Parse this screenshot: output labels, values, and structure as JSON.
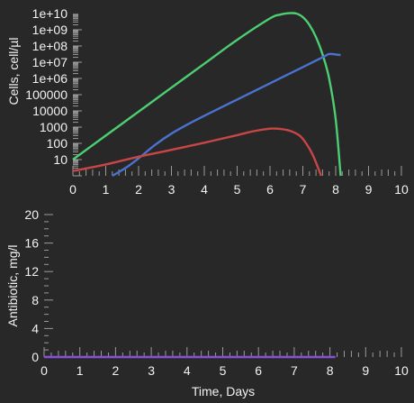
{
  "chart_data": [
    {
      "type": "line",
      "ylabel": "Cells, cell/µl",
      "xlabel": "",
      "xlim": [
        0,
        10
      ],
      "ylim": [
        1,
        10000000000
      ],
      "yscale": "log",
      "x_ticks": [
        "0",
        "1",
        "2",
        "3",
        "4",
        "5",
        "6",
        "7",
        "8",
        "9",
        "10"
      ],
      "y_ticks": [
        "10",
        "100",
        "1000",
        "10000",
        "100000",
        "1e+06",
        "1e+07",
        "1e+08",
        "1e+09",
        "1e+10"
      ],
      "series": [
        {
          "color": "#4ccf72",
          "x": [
            0,
            1,
            2,
            3,
            4,
            5,
            6,
            6.3,
            6.6,
            6.8,
            7.0,
            7.2,
            7.4,
            7.6,
            7.8,
            8.0,
            8.15
          ],
          "y": [
            10,
            300,
            9000,
            270000,
            8000000,
            240000000.0,
            5000000000.0,
            8500000000.0,
            10500000000.0,
            10000000000.0,
            6000000000.0,
            2000000000.0,
            350000000.0,
            30000000.0,
            1000000.0,
            3000.0,
            1
          ]
        },
        {
          "color": "#4a72d0",
          "x": [
            1.2,
            1.6,
            2.0,
            2.5,
            3.0,
            3.5,
            4.0,
            5.0,
            6.0,
            7.0,
            7.6,
            7.8,
            8.0,
            8.15
          ],
          "y": [
            1,
            3,
            12,
            80,
            400,
            1500,
            5000,
            50000,
            500000,
            5000000,
            20000000.0,
            32000000.0,
            30000000.0,
            28000000.0
          ]
        },
        {
          "color": "#c94646",
          "x": [
            0,
            1,
            2,
            3,
            4,
            5,
            5.5,
            6.0,
            6.3,
            6.6,
            6.9,
            7.1,
            7.3,
            7.5,
            7.55
          ],
          "y": [
            2,
            5,
            15,
            40,
            110,
            320,
            560,
            800,
            780,
            600,
            300,
            100,
            20,
            2,
            1
          ]
        }
      ]
    },
    {
      "type": "line",
      "ylabel": "Antibiotic, mg/l",
      "xlabel": "Time, Days",
      "xlim": [
        0,
        10
      ],
      "ylim": [
        0,
        20
      ],
      "x_ticks": [
        "0",
        "1",
        "2",
        "3",
        "4",
        "5",
        "6",
        "7",
        "8",
        "9",
        "10"
      ],
      "y_ticks": [
        "0",
        "4",
        "8",
        "12",
        "16",
        "20"
      ],
      "series": [
        {
          "color": "#8a4fd6",
          "x": [
            0,
            8.15
          ],
          "y": [
            0,
            0
          ]
        }
      ]
    }
  ]
}
